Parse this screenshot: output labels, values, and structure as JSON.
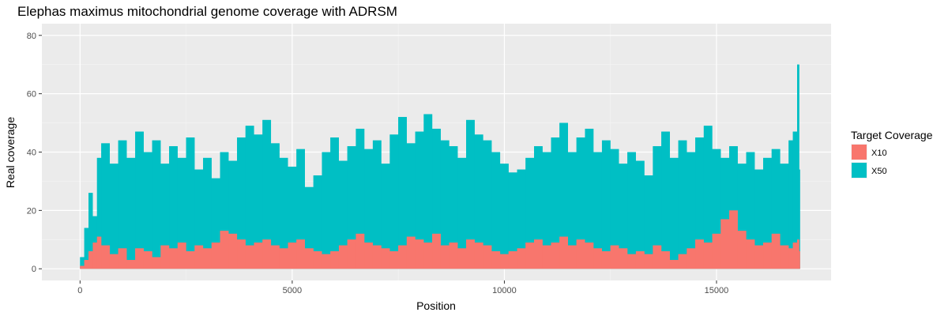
{
  "chart_data": {
    "type": "area",
    "title": "Elephas maximus mitochondrial genome coverage with ADRSM",
    "xlabel": "Position",
    "ylabel": "Real coverage",
    "xlim": [
      -900,
      17700
    ],
    "ylim": [
      -4,
      84
    ],
    "x_ticks": [
      0,
      5000,
      10000,
      15000
    ],
    "y_ticks": [
      0,
      20,
      40,
      60,
      80
    ],
    "x_tick_labels": [
      "0",
      "5000",
      "10000",
      "15000"
    ],
    "y_tick_labels": [
      "0",
      "20",
      "40",
      "60",
      "80"
    ],
    "grid": true,
    "legend": {
      "title": "Target Coverage",
      "position": "right",
      "entries": [
        {
          "label": "X10",
          "color": "#F8766D"
        },
        {
          "label": "X50",
          "color": "#00BFC4"
        }
      ]
    },
    "series": [
      {
        "name": "X50",
        "color": "#00BFC4",
        "x": [
          0,
          100,
          200,
          300,
          400,
          500,
          700,
          900,
          1100,
          1300,
          1500,
          1700,
          1900,
          2100,
          2300,
          2500,
          2700,
          2900,
          3100,
          3300,
          3500,
          3700,
          3900,
          4100,
          4300,
          4500,
          4700,
          4900,
          5100,
          5300,
          5500,
          5700,
          5900,
          6100,
          6300,
          6500,
          6700,
          6900,
          7100,
          7300,
          7500,
          7700,
          7900,
          8100,
          8300,
          8500,
          8700,
          8900,
          9100,
          9300,
          9500,
          9700,
          9900,
          10100,
          10300,
          10500,
          10700,
          10900,
          11100,
          11300,
          11500,
          11700,
          11900,
          12100,
          12300,
          12500,
          12700,
          12900,
          13100,
          13300,
          13500,
          13700,
          13900,
          14100,
          14300,
          14500,
          14700,
          14900,
          15100,
          15300,
          15500,
          15700,
          15900,
          16100,
          16300,
          16500,
          16700,
          16800,
          16900,
          16950
        ],
        "values": [
          4,
          14,
          26,
          18,
          38,
          43,
          36,
          44,
          38,
          47,
          40,
          44,
          36,
          42,
          38,
          45,
          34,
          38,
          31,
          40,
          37,
          45,
          49,
          46,
          51,
          43,
          38,
          35,
          41,
          28,
          32,
          40,
          45,
          37,
          42,
          48,
          41,
          44,
          36,
          46,
          52,
          43,
          47,
          53,
          48,
          44,
          42,
          38,
          51,
          46,
          44,
          40,
          36,
          33,
          34,
          38,
          42,
          40,
          45,
          50,
          40,
          45,
          48,
          40,
          44,
          41,
          36,
          40,
          37,
          32,
          42,
          47,
          38,
          44,
          40,
          45,
          49,
          41,
          38,
          42,
          36,
          40,
          34,
          38,
          41,
          36,
          44,
          47,
          70,
          34
        ]
      },
      {
        "name": "X10",
        "color": "#F8766D",
        "x": [
          0,
          100,
          200,
          300,
          400,
          500,
          700,
          900,
          1100,
          1300,
          1500,
          1700,
          1900,
          2100,
          2300,
          2500,
          2700,
          2900,
          3100,
          3300,
          3500,
          3700,
          3900,
          4100,
          4300,
          4500,
          4700,
          4900,
          5100,
          5300,
          5500,
          5700,
          5900,
          6100,
          6300,
          6500,
          6700,
          6900,
          7100,
          7300,
          7500,
          7700,
          7900,
          8100,
          8300,
          8500,
          8700,
          8900,
          9100,
          9300,
          9500,
          9700,
          9900,
          10100,
          10300,
          10500,
          10700,
          10900,
          11100,
          11300,
          11500,
          11700,
          11900,
          12100,
          12300,
          12500,
          12700,
          12900,
          13100,
          13300,
          13500,
          13700,
          13900,
          14100,
          14300,
          14500,
          14700,
          14900,
          15100,
          15300,
          15500,
          15700,
          15900,
          16100,
          16300,
          16500,
          16700,
          16800,
          16900,
          16950
        ],
        "values": [
          1,
          3,
          6,
          9,
          11,
          8,
          5,
          7,
          3,
          7,
          6,
          4,
          8,
          7,
          9,
          6,
          8,
          7,
          9,
          13,
          12,
          10,
          8,
          9,
          10,
          8,
          7,
          9,
          10,
          7,
          6,
          5,
          6,
          8,
          10,
          12,
          9,
          8,
          7,
          6,
          8,
          11,
          10,
          9,
          12,
          8,
          9,
          7,
          10,
          9,
          8,
          6,
          5,
          6,
          7,
          9,
          10,
          8,
          9,
          11,
          8,
          10,
          9,
          7,
          6,
          8,
          7,
          5,
          6,
          5,
          8,
          6,
          3,
          5,
          7,
          10,
          9,
          12,
          17,
          20,
          13,
          10,
          8,
          9,
          12,
          8,
          7,
          9,
          10,
          6
        ]
      }
    ]
  }
}
